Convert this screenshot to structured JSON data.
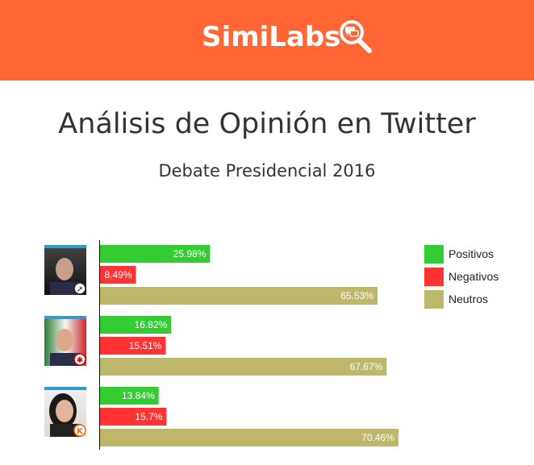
{
  "header": {
    "logo_text": "SimiLabs",
    "logo_icon": "magnifier-chat-icon",
    "background_color": "#ff6633"
  },
  "page": {
    "title": "Análisis de Opinión en Twitter",
    "subtitle": "Debate Presidencial 2016"
  },
  "chart_data": {
    "type": "bar",
    "orientation": "horizontal",
    "xlim": [
      0,
      100
    ],
    "grid": false,
    "legend_placement": "top-right",
    "groups": [
      {
        "avatar": "candidate-1-avatar",
        "badge": "party-badge-ppk-icon"
      },
      {
        "avatar": "candidate-2-avatar",
        "badge": "party-badge-apra-icon"
      },
      {
        "avatar": "candidate-3-avatar",
        "badge": "party-badge-fuerza-popular-icon"
      }
    ],
    "series": [
      {
        "name": "Positivos",
        "color": "#33cc33",
        "values": [
          25.98,
          16.82,
          13.84
        ],
        "labels": [
          "25.98%",
          "16.82%",
          "13.84%"
        ]
      },
      {
        "name": "Negativos",
        "color": "#ff3333",
        "values": [
          8.49,
          15.51,
          15.7
        ],
        "labels": [
          "8.49%",
          "15.51%",
          "15.7%"
        ]
      },
      {
        "name": "Neutros",
        "color": "#bdb76b",
        "values": [
          65.53,
          67.67,
          70.46
        ],
        "labels": [
          "65.53%",
          "67.67%",
          "70.46%"
        ]
      }
    ]
  }
}
